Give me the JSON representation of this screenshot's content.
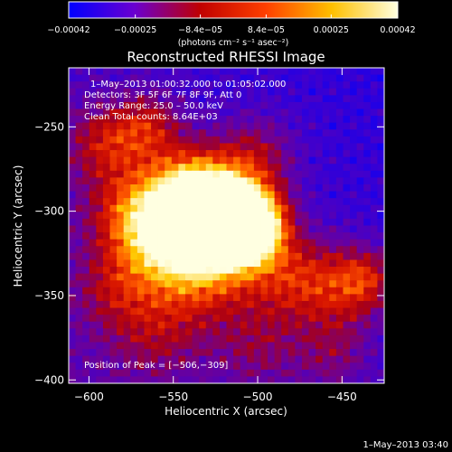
{
  "chart_data": {
    "type": "heatmap",
    "title": "Reconstructed RHESSI Image",
    "xlabel": "Heliocentric X (arcsec)",
    "ylabel": "Heliocentric Y (arcsec)",
    "xlim": [
      -612,
      -425
    ],
    "ylim": [
      -402,
      -215
    ],
    "x_ticks": [
      -600,
      -550,
      -500,
      -450
    ],
    "y_ticks": [
      -250,
      -300,
      -350,
      -400
    ],
    "x_tick_labels": [
      "−600",
      "−550",
      "−500",
      "−450"
    ],
    "y_tick_labels": [
      "−250",
      "−300",
      "−350",
      "−400"
    ],
    "colorbar": {
      "range": [
        -0.00042,
        0.00042
      ],
      "tick_values": [
        -0.00042,
        -0.00025,
        -8.4e-05,
        8.4e-05,
        0.00025,
        0.00042
      ],
      "tick_labels": [
        "−0.00042",
        "−0.00025",
        "−8.4e−05",
        "8.4e−05",
        "0.00025",
        "0.00042"
      ],
      "unit_label": "(photons cm⁻² s⁻¹ asec⁻²)",
      "colors": [
        "#0000ff",
        "#6a00d0",
        "#c00000",
        "#ff4000",
        "#ffc000",
        "#ffffe0"
      ]
    },
    "peak": {
      "x": -506,
      "y": -309
    },
    "annotations": {
      "time_range": "1–May–2013 01:00:32.000 to 01:05:02.000",
      "detectors": "Detectors: 3F 5F 6F 7F 8F 9F, Att 0",
      "energy": "Energy Range: 25.0 – 50.0 keV",
      "clean": "Clean    Total counts: 8.64E+03",
      "peak_text": "Position of Peak = [−506,−309]"
    },
    "timestamp": "1–May–2013 03:40"
  }
}
